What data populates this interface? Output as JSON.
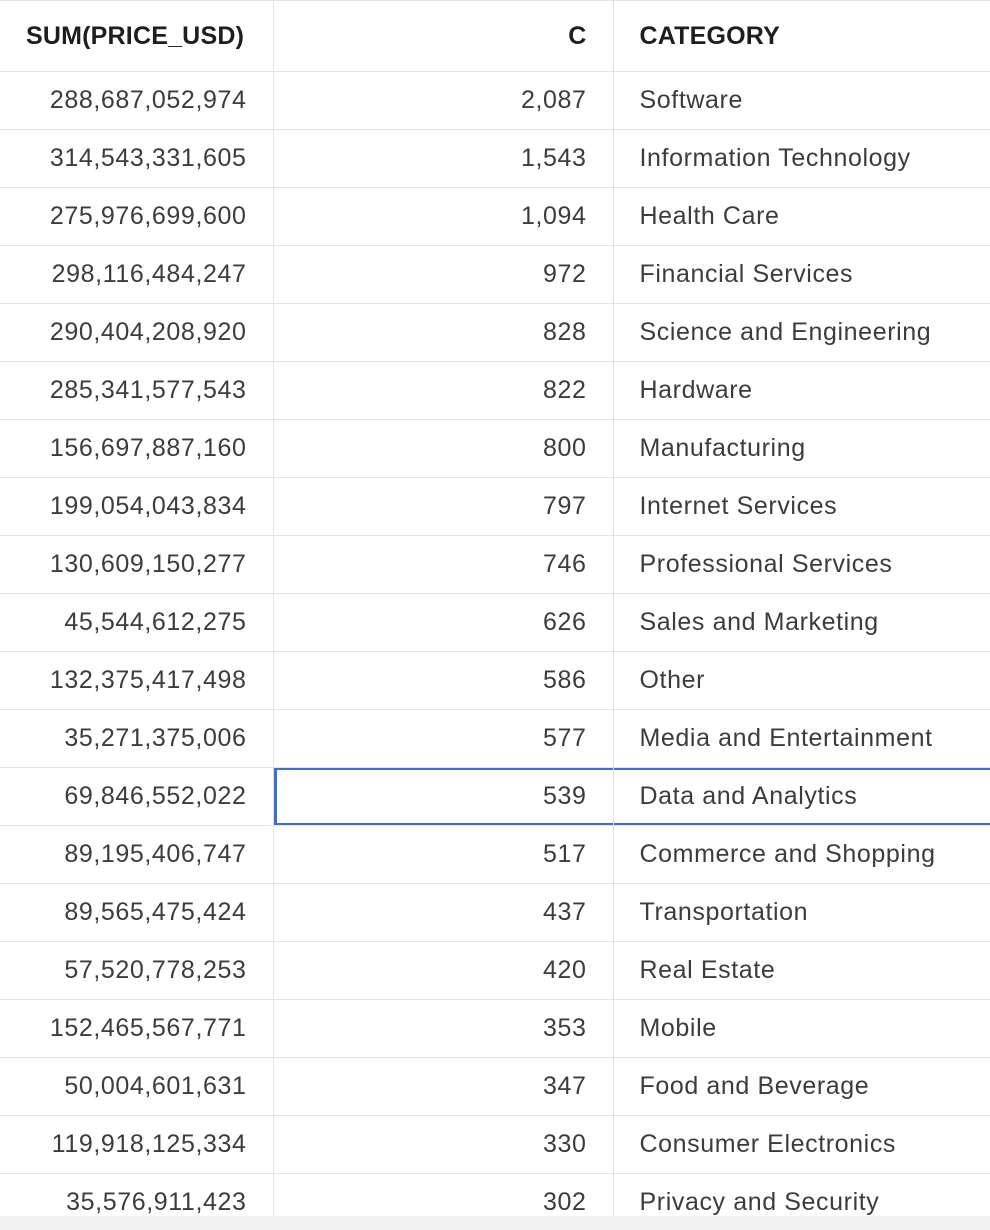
{
  "columns": {
    "sum_price": "SUM(PRICE_USD)",
    "count": "C",
    "category": "CATEGORY"
  },
  "rows": [
    {
      "sum": "288,687,052,974",
      "c": "2,087",
      "category": "Software"
    },
    {
      "sum": "314,543,331,605",
      "c": "1,543",
      "category": "Information Technology"
    },
    {
      "sum": "275,976,699,600",
      "c": "1,094",
      "category": "Health Care"
    },
    {
      "sum": "298,116,484,247",
      "c": "972",
      "category": "Financial Services"
    },
    {
      "sum": "290,404,208,920",
      "c": "828",
      "category": "Science and Engineering"
    },
    {
      "sum": "285,341,577,543",
      "c": "822",
      "category": "Hardware"
    },
    {
      "sum": "156,697,887,160",
      "c": "800",
      "category": "Manufacturing"
    },
    {
      "sum": "199,054,043,834",
      "c": "797",
      "category": "Internet Services"
    },
    {
      "sum": "130,609,150,277",
      "c": "746",
      "category": "Professional Services"
    },
    {
      "sum": "45,544,612,275",
      "c": "626",
      "category": "Sales and Marketing"
    },
    {
      "sum": "132,375,417,498",
      "c": "586",
      "category": "Other"
    },
    {
      "sum": "35,271,375,006",
      "c": "577",
      "category": "Media and Entertainment"
    },
    {
      "sum": "69,846,552,022",
      "c": "539",
      "category": "Data and Analytics"
    },
    {
      "sum": "89,195,406,747",
      "c": "517",
      "category": "Commerce and Shopping"
    },
    {
      "sum": "89,565,475,424",
      "c": "437",
      "category": "Transportation"
    },
    {
      "sum": "57,520,778,253",
      "c": "420",
      "category": "Real Estate"
    },
    {
      "sum": "152,465,567,771",
      "c": "353",
      "category": "Mobile"
    },
    {
      "sum": "50,004,601,631",
      "c": "347",
      "category": "Food and Beverage"
    },
    {
      "sum": "119,918,125,334",
      "c": "330",
      "category": "Consumer Electronics"
    },
    {
      "sum": "35,576,911,423",
      "c": "302",
      "category": "Privacy and Security"
    }
  ],
  "selection": {
    "row_index": 12,
    "color": "#3b6fd4"
  }
}
